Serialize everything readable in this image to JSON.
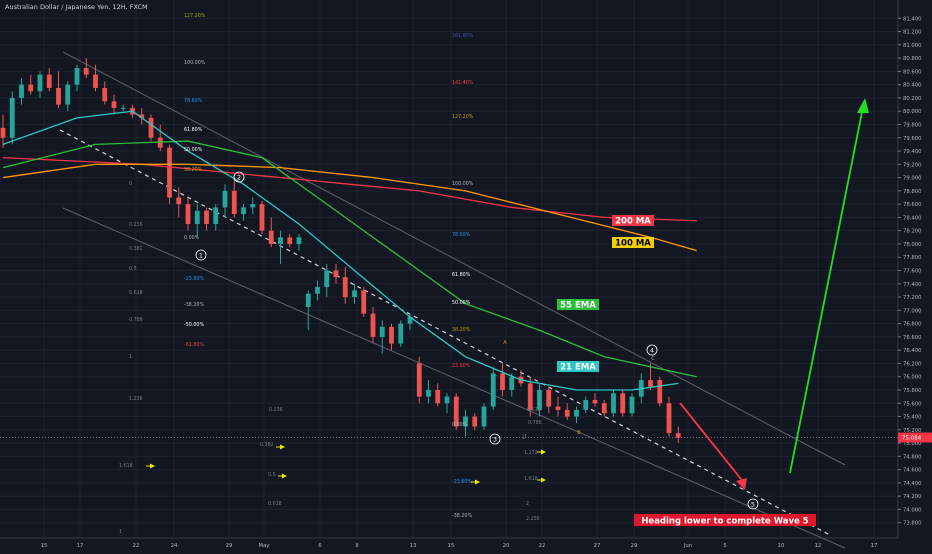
{
  "window": {
    "title": "Australian Dollar / Japanese Yen, 12H, FXCM"
  },
  "chart_data": {
    "type": "candlestick",
    "symbol": "Australian Dollar / Japanese Yen",
    "timeframe": "12H",
    "source": "FXCM",
    "ylim": [
      73.6,
      81.7
    ],
    "y_ticks": [
      "81.400",
      "81.200",
      "81.000",
      "80.800",
      "80.600",
      "80.400",
      "80.200",
      "80.000",
      "79.800",
      "79.600",
      "79.400",
      "79.200",
      "79.000",
      "78.800",
      "78.600",
      "78.400",
      "78.200",
      "78.000",
      "77.800",
      "77.600",
      "77.400",
      "77.200",
      "77.000",
      "76.800",
      "76.600",
      "76.400",
      "76.200",
      "76.000",
      "75.800",
      "75.600",
      "75.400",
      "75.200",
      "75.000",
      "74.800",
      "74.600",
      "74.400",
      "74.200",
      "74.000",
      "73.800"
    ],
    "x_ticks": [
      "15",
      "17",
      "22",
      "24",
      "29",
      "May",
      "6",
      "8",
      "13",
      "15",
      "20",
      "22",
      "27",
      "29",
      "Jun",
      "5",
      "10",
      "12",
      "17"
    ],
    "current_price": "75.084",
    "candles": [
      {
        "o": 79.75,
        "h": 79.95,
        "l": 79.45,
        "c": 79.6
      },
      {
        "o": 79.6,
        "h": 80.3,
        "l": 79.5,
        "c": 80.2
      },
      {
        "o": 80.2,
        "h": 80.5,
        "l": 80.1,
        "c": 80.4
      },
      {
        "o": 80.4,
        "h": 80.55,
        "l": 80.25,
        "c": 80.3
      },
      {
        "o": 80.3,
        "h": 80.6,
        "l": 80.2,
        "c": 80.55
      },
      {
        "o": 80.55,
        "h": 80.65,
        "l": 80.3,
        "c": 80.35
      },
      {
        "o": 80.35,
        "h": 80.6,
        "l": 80.05,
        "c": 80.1
      },
      {
        "o": 80.1,
        "h": 80.45,
        "l": 80.0,
        "c": 80.4
      },
      {
        "o": 80.4,
        "h": 80.7,
        "l": 80.3,
        "c": 80.65
      },
      {
        "o": 80.65,
        "h": 80.8,
        "l": 80.5,
        "c": 80.55
      },
      {
        "o": 80.55,
        "h": 80.7,
        "l": 80.3,
        "c": 80.35
      },
      {
        "o": 80.35,
        "h": 80.45,
        "l": 80.1,
        "c": 80.15
      },
      {
        "o": 80.15,
        "h": 80.25,
        "l": 79.95,
        "c": 80.05
      },
      {
        "o": 80.05,
        "h": 80.1,
        "l": 80.0,
        "c": 80.05
      },
      {
        "o": 80.05,
        "h": 80.1,
        "l": 79.9,
        "c": 79.95
      },
      {
        "o": 79.95,
        "h": 80.05,
        "l": 79.8,
        "c": 79.9
      },
      {
        "o": 79.9,
        "h": 79.95,
        "l": 79.55,
        "c": 79.6
      },
      {
        "o": 79.6,
        "h": 79.8,
        "l": 79.4,
        "c": 79.45
      },
      {
        "o": 79.45,
        "h": 79.5,
        "l": 78.6,
        "c": 78.7
      },
      {
        "o": 78.7,
        "h": 78.85,
        "l": 78.4,
        "c": 78.6
      },
      {
        "o": 78.6,
        "h": 78.7,
        "l": 78.2,
        "c": 78.3
      },
      {
        "o": 78.3,
        "h": 78.6,
        "l": 78.1,
        "c": 78.5
      },
      {
        "o": 78.5,
        "h": 78.55,
        "l": 78.2,
        "c": 78.3
      },
      {
        "o": 78.3,
        "h": 78.6,
        "l": 78.2,
        "c": 78.55
      },
      {
        "o": 78.55,
        "h": 78.9,
        "l": 78.4,
        "c": 78.8
      },
      {
        "o": 78.8,
        "h": 79.0,
        "l": 78.4,
        "c": 78.45
      },
      {
        "o": 78.45,
        "h": 78.6,
        "l": 78.35,
        "c": 78.55
      },
      {
        "o": 78.55,
        "h": 78.7,
        "l": 78.45,
        "c": 78.6
      },
      {
        "o": 78.6,
        "h": 78.65,
        "l": 78.15,
        "c": 78.2
      },
      {
        "o": 78.2,
        "h": 78.4,
        "l": 77.95,
        "c": 78.0
      },
      {
        "o": 78.0,
        "h": 78.2,
        "l": 77.7,
        "c": 78.1
      },
      {
        "o": 78.1,
        "h": 78.15,
        "l": 77.95,
        "c": 78.0
      },
      {
        "o": 78.0,
        "h": 78.15,
        "l": 77.9,
        "c": 78.1
      },
      {
        "o": 77.05,
        "h": 77.3,
        "l": 76.7,
        "c": 77.25
      },
      {
        "o": 77.25,
        "h": 77.45,
        "l": 77.15,
        "c": 77.35
      },
      {
        "o": 77.35,
        "h": 77.7,
        "l": 77.2,
        "c": 77.6
      },
      {
        "o": 77.6,
        "h": 77.7,
        "l": 77.4,
        "c": 77.5
      },
      {
        "o": 77.5,
        "h": 77.65,
        "l": 77.1,
        "c": 77.2
      },
      {
        "o": 77.2,
        "h": 77.4,
        "l": 77.1,
        "c": 77.3
      },
      {
        "o": 77.3,
        "h": 77.35,
        "l": 76.9,
        "c": 76.95
      },
      {
        "o": 76.95,
        "h": 77.05,
        "l": 76.5,
        "c": 76.6
      },
      {
        "o": 76.6,
        "h": 76.85,
        "l": 76.35,
        "c": 76.75
      },
      {
        "o": 76.75,
        "h": 76.8,
        "l": 76.4,
        "c": 76.5
      },
      {
        "o": 76.5,
        "h": 76.85,
        "l": 76.45,
        "c": 76.8
      },
      {
        "o": 76.8,
        "h": 76.95,
        "l": 76.7,
        "c": 76.9
      },
      {
        "o": 76.2,
        "h": 76.3,
        "l": 75.6,
        "c": 75.7
      },
      {
        "o": 75.7,
        "h": 75.95,
        "l": 75.6,
        "c": 75.8
      },
      {
        "o": 75.8,
        "h": 75.9,
        "l": 75.55,
        "c": 75.6
      },
      {
        "o": 75.6,
        "h": 75.75,
        "l": 75.45,
        "c": 75.7
      },
      {
        "o": 75.7,
        "h": 75.75,
        "l": 75.2,
        "c": 75.25
      },
      {
        "o": 75.25,
        "h": 75.5,
        "l": 75.1,
        "c": 75.4
      },
      {
        "o": 75.4,
        "h": 75.45,
        "l": 75.2,
        "c": 75.25
      },
      {
        "o": 75.25,
        "h": 75.6,
        "l": 75.2,
        "c": 75.55
      },
      {
        "o": 75.55,
        "h": 76.15,
        "l": 75.5,
        "c": 76.05
      },
      {
        "o": 76.05,
        "h": 76.2,
        "l": 75.7,
        "c": 75.8
      },
      {
        "o": 75.8,
        "h": 76.05,
        "l": 75.7,
        "c": 76.0
      },
      {
        "o": 76.0,
        "h": 76.1,
        "l": 75.85,
        "c": 75.9
      },
      {
        "o": 75.9,
        "h": 76.0,
        "l": 75.4,
        "c": 75.5
      },
      {
        "o": 75.5,
        "h": 75.9,
        "l": 75.4,
        "c": 75.8
      },
      {
        "o": 75.8,
        "h": 75.85,
        "l": 75.45,
        "c": 75.55
      },
      {
        "o": 75.55,
        "h": 75.7,
        "l": 75.4,
        "c": 75.5
      },
      {
        "o": 75.5,
        "h": 75.6,
        "l": 75.35,
        "c": 75.4
      },
      {
        "o": 75.4,
        "h": 75.55,
        "l": 75.3,
        "c": 75.5
      },
      {
        "o": 75.5,
        "h": 75.7,
        "l": 75.45,
        "c": 75.65
      },
      {
        "o": 75.65,
        "h": 75.75,
        "l": 75.55,
        "c": 75.6
      },
      {
        "o": 75.6,
        "h": 75.65,
        "l": 75.4,
        "c": 75.45
      },
      {
        "o": 75.45,
        "h": 75.8,
        "l": 75.4,
        "c": 75.75
      },
      {
        "o": 75.75,
        "h": 75.8,
        "l": 75.4,
        "c": 75.45
      },
      {
        "o": 75.45,
        "h": 75.75,
        "l": 75.4,
        "c": 75.7
      },
      {
        "o": 75.7,
        "h": 76.05,
        "l": 75.6,
        "c": 75.95
      },
      {
        "o": 75.95,
        "h": 76.2,
        "l": 75.8,
        "c": 75.85
      },
      {
        "o": 75.95,
        "h": 76.0,
        "l": 75.55,
        "c": 75.6
      },
      {
        "o": 75.6,
        "h": 75.7,
        "l": 75.1,
        "c": 75.15
      },
      {
        "o": 75.15,
        "h": 75.25,
        "l": 75.0,
        "c": 75.08
      }
    ],
    "indicators": [
      {
        "name": "200 MA",
        "color": "#f23645",
        "points": [
          [
            0,
            79.3
          ],
          [
            15,
            79.2
          ],
          [
            30,
            79.0
          ],
          [
            45,
            78.8
          ],
          [
            55,
            78.55
          ],
          [
            65,
            78.4
          ],
          [
            75,
            78.35
          ]
        ]
      },
      {
        "name": "100 MA",
        "color": "#ff9800",
        "points": [
          [
            0,
            79.0
          ],
          [
            10,
            79.2
          ],
          [
            20,
            79.2
          ],
          [
            30,
            79.15
          ],
          [
            40,
            79.0
          ],
          [
            50,
            78.8
          ],
          [
            60,
            78.45
          ],
          [
            70,
            78.1
          ],
          [
            75,
            77.9
          ]
        ]
      },
      {
        "name": "55 EMA",
        "color": "#2ebd3c",
        "points": [
          [
            0,
            79.15
          ],
          [
            10,
            79.5
          ],
          [
            20,
            79.55
          ],
          [
            28,
            79.3
          ],
          [
            35,
            78.6
          ],
          [
            42,
            77.9
          ],
          [
            50,
            77.1
          ],
          [
            58,
            76.7
          ],
          [
            65,
            76.3
          ],
          [
            75,
            76.0
          ]
        ]
      },
      {
        "name": "21 EMA",
        "color": "#2ec7c4",
        "points": [
          [
            0,
            79.5
          ],
          [
            8,
            79.9
          ],
          [
            14,
            80.0
          ],
          [
            20,
            79.4
          ],
          [
            26,
            78.9
          ],
          [
            32,
            78.3
          ],
          [
            38,
            77.6
          ],
          [
            44,
            76.9
          ],
          [
            50,
            76.3
          ],
          [
            56,
            75.95
          ],
          [
            62,
            75.8
          ],
          [
            68,
            75.8
          ],
          [
            73,
            75.9
          ]
        ]
      }
    ],
    "wave_labels": [
      "1",
      "2",
      "3",
      "4",
      "5"
    ],
    "abc_labels": [
      "A",
      "B",
      "C"
    ],
    "annotation": "Heading lower to complete Wave 5",
    "fib_labels_left": [
      "127.20%",
      "100.00%",
      "78.60%",
      "61.80%",
      "50.00%",
      "38.20%",
      "0.00%",
      "-23.60%",
      "-38.20%",
      "-50.00%",
      "-61.80%"
    ],
    "fib_labels_right": [
      "161.80%",
      "141.40%",
      "127.20%",
      "100.00%",
      "78.60%",
      "61.80%",
      "50.00%",
      "38.20%",
      "23.60%",
      "0.00%",
      "-23.60%",
      "-38.20%"
    ],
    "fib_labels_left_misc": [
      "0.236",
      "0.382",
      "0.5",
      "0.618",
      "0.786",
      "1",
      "1.236",
      "1.618",
      "1"
    ],
    "fib_labels_mid_misc": [
      "0",
      "0.236",
      "0.382",
      "0.5",
      "0.618"
    ],
    "fib_labels_right_misc": [
      "1",
      "0.618",
      "0.786",
      "1",
      "1.272",
      "1.618",
      "2",
      "2.236"
    ]
  }
}
